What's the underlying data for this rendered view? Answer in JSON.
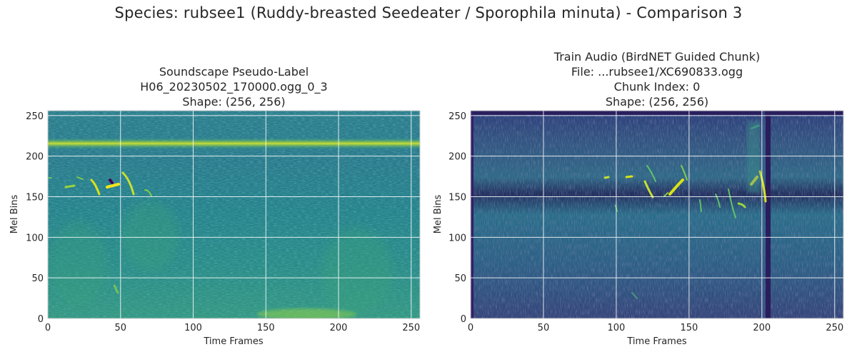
{
  "figure": {
    "suptitle": "Species: rubsee1 (Ruddy-breasted Seedeater / Sporophila minuta) - Comparison 3"
  },
  "chart_data": [
    {
      "type": "heatmap",
      "title_lines": [
        "Soundscape Pseudo-Label",
        "H06_20230502_170000.ogg_0_3",
        "Shape: (256, 256)"
      ],
      "xlabel": "Time Frames",
      "ylabel": "Mel Bins",
      "xlim": [
        0,
        256
      ],
      "ylim": [
        0,
        256
      ],
      "xticks": [
        0,
        50,
        100,
        150,
        200,
        250
      ],
      "yticks": [
        0,
        50,
        100,
        150,
        200,
        250
      ],
      "grid": true,
      "colormap": "viridis",
      "shape": [
        256,
        256
      ]
    },
    {
      "type": "heatmap",
      "title_lines": [
        "Train Audio (BirdNET Guided Chunk)",
        "File: ...rubsee1/XC690833.ogg",
        "Chunk Index: 0",
        "Shape: (256, 256)"
      ],
      "xlabel": "Time Frames",
      "ylabel": "Mel Bins",
      "xlim": [
        0,
        256
      ],
      "ylim": [
        0,
        256
      ],
      "xticks": [
        0,
        50,
        100,
        150,
        200,
        250
      ],
      "yticks": [
        0,
        50,
        100,
        150,
        200,
        250
      ],
      "grid": true,
      "colormap": "viridis",
      "shape": [
        256,
        256
      ]
    }
  ]
}
